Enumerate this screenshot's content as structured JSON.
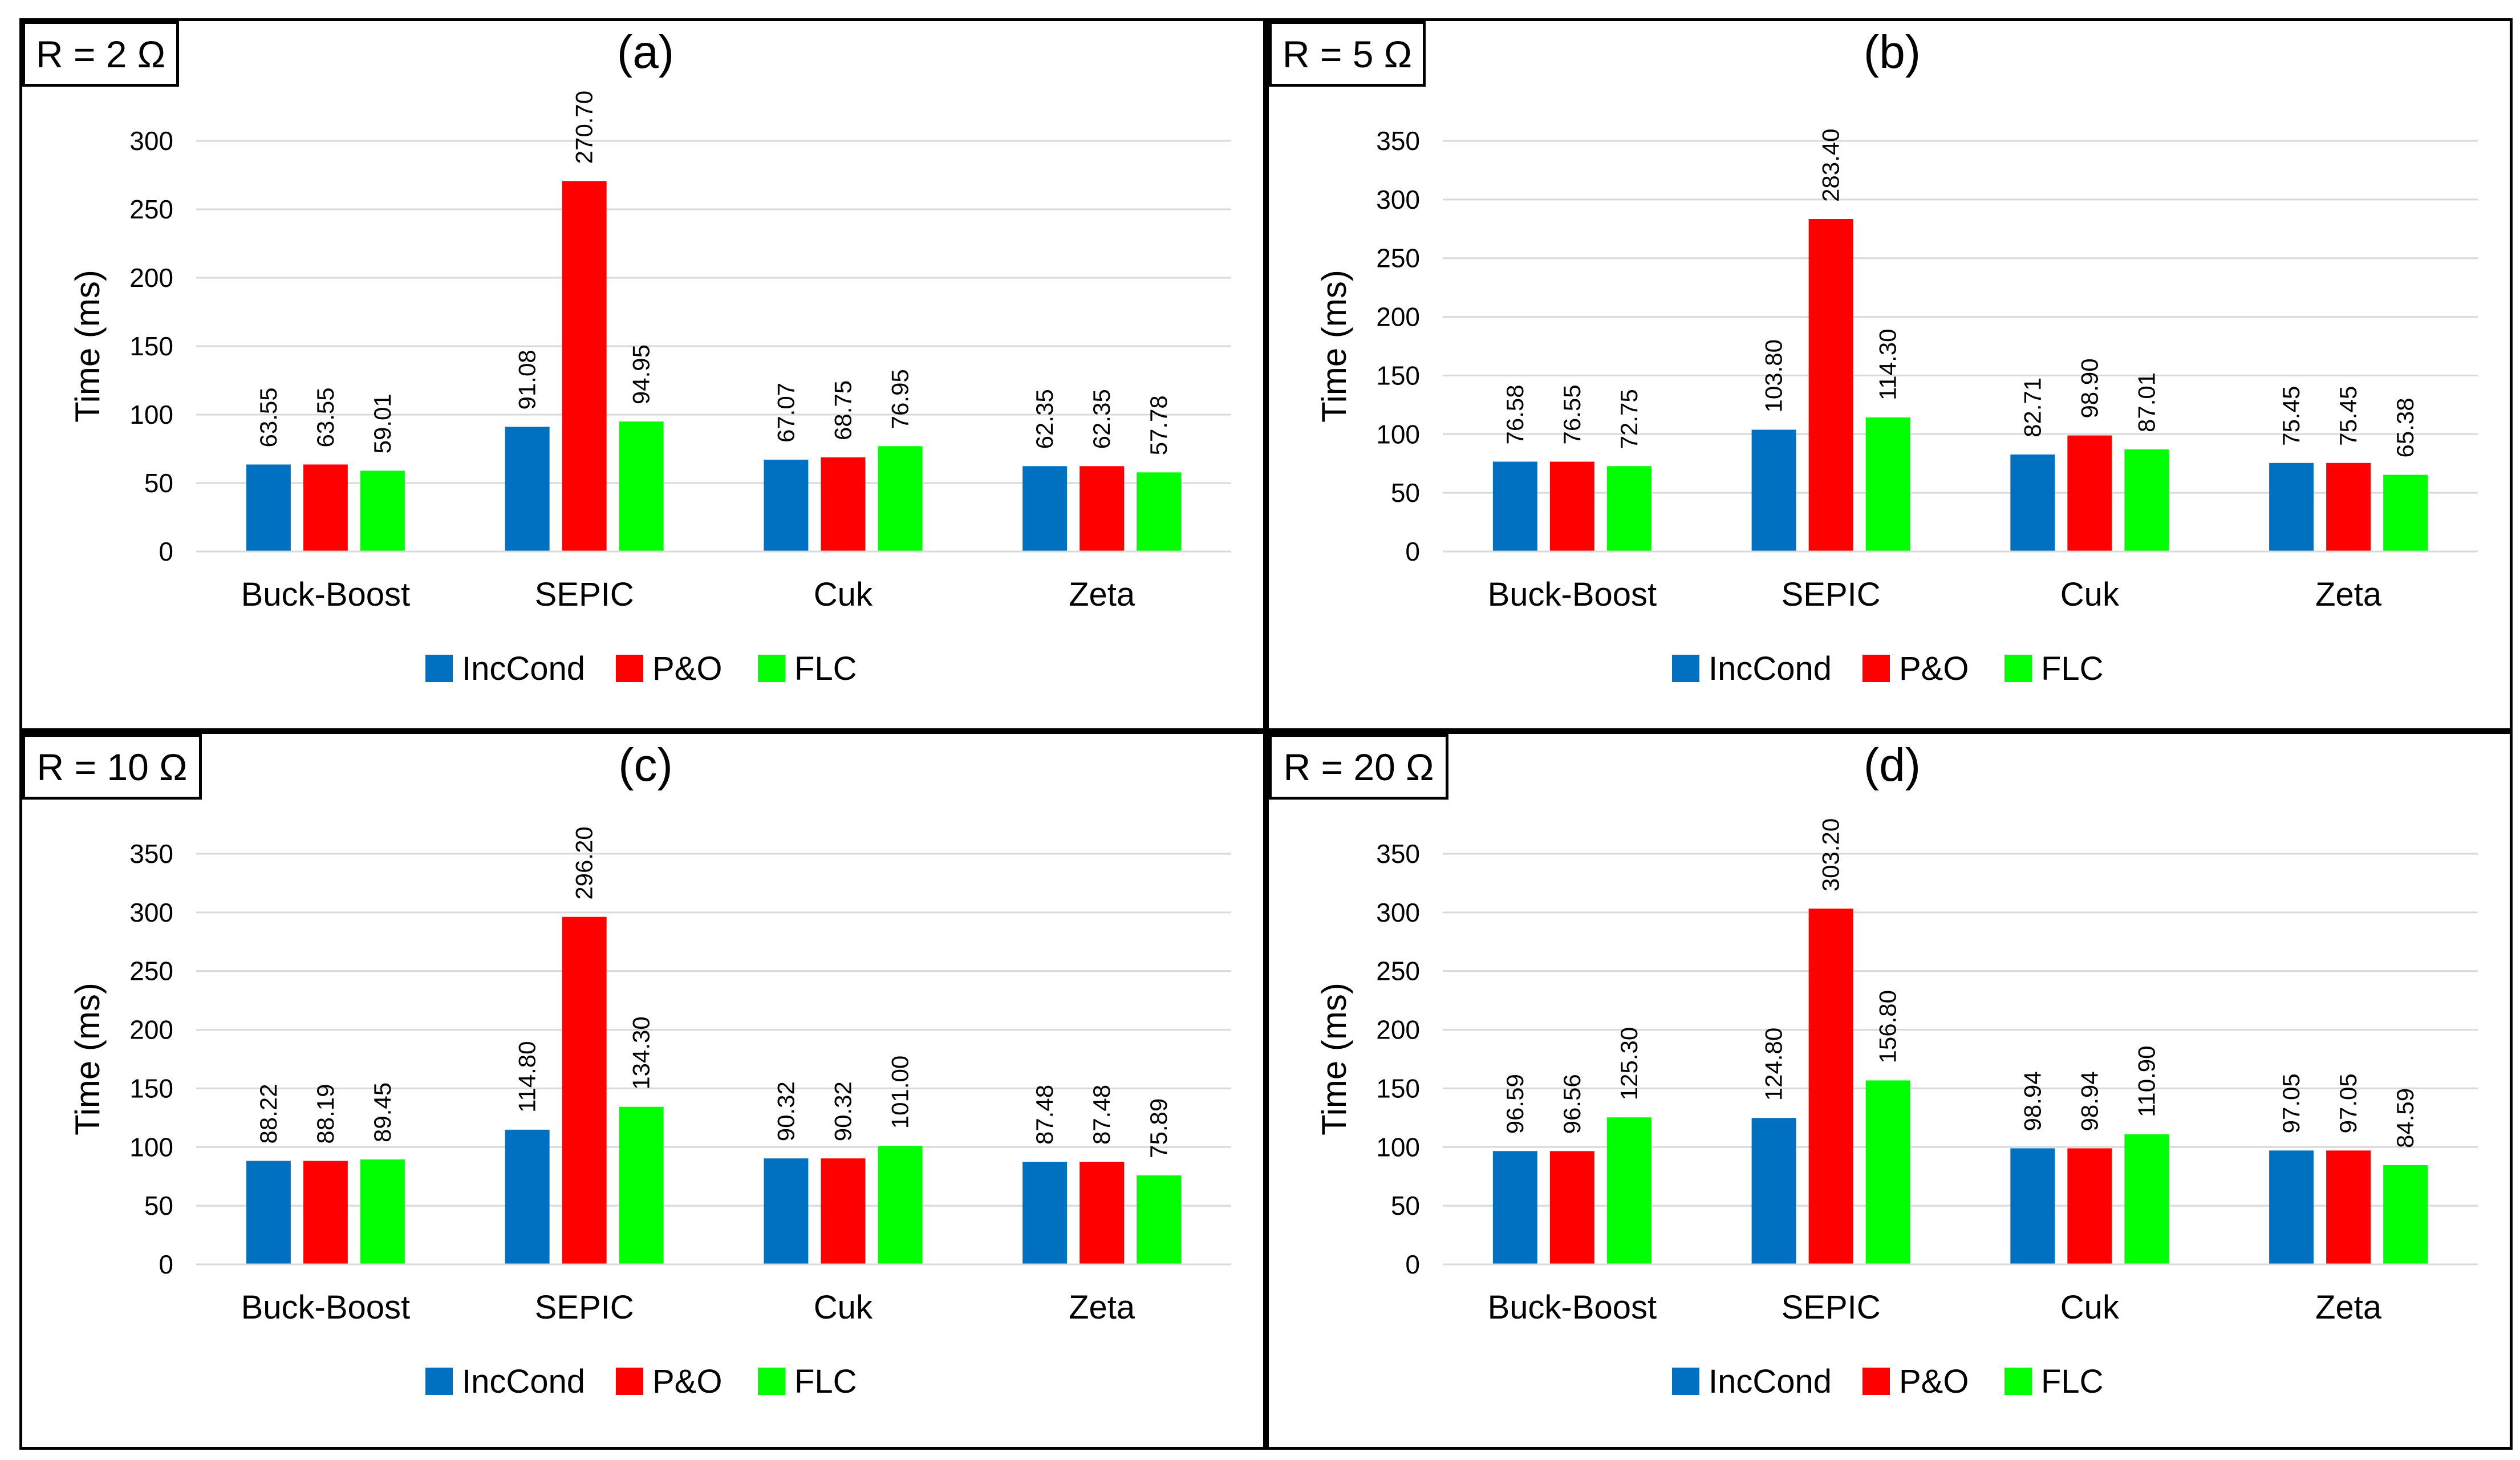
{
  "figure": {
    "categories": [
      "Buck-Boost",
      "SEPIC",
      "Cuk",
      "Zeta"
    ],
    "series_names": [
      "IncCond",
      "P&O",
      "FLC"
    ],
    "series_colors": [
      "#0070C0",
      "#FF0000",
      "#00FF00"
    ],
    "ylabel": "Time (ms)"
  },
  "chart_data": [
    {
      "type": "bar",
      "panel_label": "(a)",
      "condition": "R = 2 Ω",
      "categories": [
        "Buck-Boost",
        "SEPIC",
        "Cuk",
        "Zeta"
      ],
      "ylabel": "Time (ms)",
      "ylim": [
        0,
        300
      ],
      "yticks": [
        0,
        50,
        100,
        150,
        200,
        250,
        300
      ],
      "grid": true,
      "legend_position": "bottom",
      "series": [
        {
          "name": "IncCond",
          "color": "#0070C0",
          "values": [
            63.55,
            91.08,
            67.07,
            62.35
          ],
          "labels": [
            "63.55",
            "91.08",
            "67.07",
            "62.35"
          ]
        },
        {
          "name": "P&O",
          "color": "#FF0000",
          "values": [
            63.55,
            270.7,
            68.75,
            62.35
          ],
          "labels": [
            "63.55",
            "270.70",
            "68.75",
            "62.35"
          ]
        },
        {
          "name": "FLC",
          "color": "#00FF00",
          "values": [
            59.01,
            94.95,
            76.95,
            57.78
          ],
          "labels": [
            "59.01",
            "94.95",
            "76.95",
            "57.78"
          ]
        }
      ]
    },
    {
      "type": "bar",
      "panel_label": "(b)",
      "condition": "R = 5 Ω",
      "categories": [
        "Buck-Boost",
        "SEPIC",
        "Cuk",
        "Zeta"
      ],
      "ylabel": "Time (ms)",
      "ylim": [
        0,
        350
      ],
      "yticks": [
        0,
        50,
        100,
        150,
        200,
        250,
        300,
        350
      ],
      "grid": true,
      "legend_position": "bottom",
      "series": [
        {
          "name": "IncCond",
          "color": "#0070C0",
          "values": [
            76.58,
            103.8,
            82.71,
            75.45
          ],
          "labels": [
            "76.58",
            "103.80",
            "82.71",
            "75.45"
          ]
        },
        {
          "name": "P&O",
          "color": "#FF0000",
          "values": [
            76.55,
            283.4,
            98.9,
            75.45
          ],
          "labels": [
            "76.55",
            "283.40",
            "98.90",
            "75.45"
          ]
        },
        {
          "name": "FLC",
          "color": "#00FF00",
          "values": [
            72.75,
            114.3,
            87.01,
            65.38
          ],
          "labels": [
            "72.75",
            "114.30",
            "87.01",
            "65.38"
          ]
        }
      ]
    },
    {
      "type": "bar",
      "panel_label": "(c)",
      "condition": "R = 10 Ω",
      "categories": [
        "Buck-Boost",
        "SEPIC",
        "Cuk",
        "Zeta"
      ],
      "ylabel": "Time (ms)",
      "ylim": [
        0,
        350
      ],
      "yticks": [
        0,
        50,
        100,
        150,
        200,
        250,
        300,
        350
      ],
      "grid": true,
      "legend_position": "bottom",
      "series": [
        {
          "name": "IncCond",
          "color": "#0070C0",
          "values": [
            88.22,
            114.8,
            90.32,
            87.48
          ],
          "labels": [
            "88.22",
            "114.80",
            "90.32",
            "87.48"
          ]
        },
        {
          "name": "P&O",
          "color": "#FF0000",
          "values": [
            88.19,
            296.2,
            90.32,
            87.48
          ],
          "labels": [
            "88.19",
            "296.20",
            "90.32",
            "87.48"
          ]
        },
        {
          "name": "FLC",
          "color": "#00FF00",
          "values": [
            89.45,
            134.3,
            101.0,
            75.89
          ],
          "labels": [
            "89.45",
            "134.30",
            "101.00",
            "75.89"
          ]
        }
      ]
    },
    {
      "type": "bar",
      "panel_label": "(d)",
      "condition": "R = 20 Ω",
      "categories": [
        "Buck-Boost",
        "SEPIC",
        "Cuk",
        "Zeta"
      ],
      "ylabel": "Time (ms)",
      "ylim": [
        0,
        350
      ],
      "yticks": [
        0,
        50,
        100,
        150,
        200,
        250,
        300,
        350
      ],
      "grid": true,
      "legend_position": "bottom",
      "series": [
        {
          "name": "IncCond",
          "color": "#0070C0",
          "values": [
            96.59,
            124.8,
            98.94,
            97.05
          ],
          "labels": [
            "96.59",
            "124.80",
            "98.94",
            "97.05"
          ]
        },
        {
          "name": "P&O",
          "color": "#FF0000",
          "values": [
            96.56,
            303.2,
            98.94,
            97.05
          ],
          "labels": [
            "96.56",
            "303.20",
            "98.94",
            "97.05"
          ]
        },
        {
          "name": "FLC",
          "color": "#00FF00",
          "values": [
            125.3,
            156.8,
            110.9,
            84.59
          ],
          "labels": [
            "125.30",
            "156.80",
            "110.90",
            "84.59"
          ]
        }
      ]
    }
  ]
}
